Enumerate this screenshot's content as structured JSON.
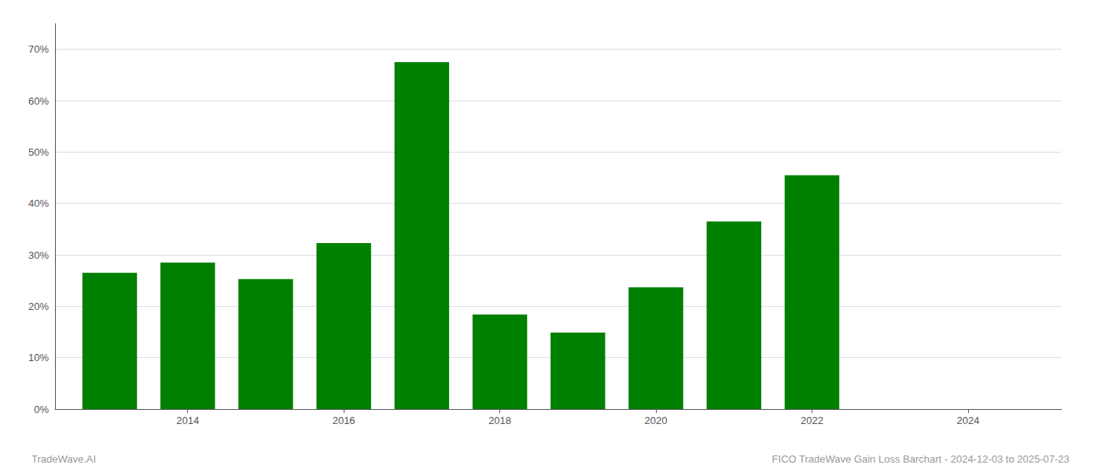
{
  "chart_data": {
    "type": "bar",
    "x": [
      2013,
      2014,
      2015,
      2016,
      2017,
      2018,
      2019,
      2020,
      2021,
      2022
    ],
    "values": [
      0.265,
      0.285,
      0.253,
      0.323,
      0.675,
      0.184,
      0.149,
      0.237,
      0.365,
      0.455
    ],
    "color": "#008000",
    "xlim": [
      2012.3,
      2025.2
    ],
    "xticks": [
      2014,
      2016,
      2018,
      2020,
      2022,
      2024
    ],
    "ylim": [
      0.0,
      0.75
    ],
    "yticks": [
      {
        "value": 0.0,
        "label": "0%"
      },
      {
        "value": 0.1,
        "label": "10%"
      },
      {
        "value": 0.2,
        "label": "20%"
      },
      {
        "value": 0.3,
        "label": "30%"
      },
      {
        "value": 0.4,
        "label": "40%"
      },
      {
        "value": 0.5,
        "label": "50%"
      },
      {
        "value": 0.6,
        "label": "60%"
      },
      {
        "value": 0.7,
        "label": "70%"
      }
    ],
    "grid": true,
    "annotations": [
      "TradeWave.AI",
      "FICO TradeWave Gain Loss Barchart - 2024-12-03 to 2025-07-23"
    ]
  }
}
